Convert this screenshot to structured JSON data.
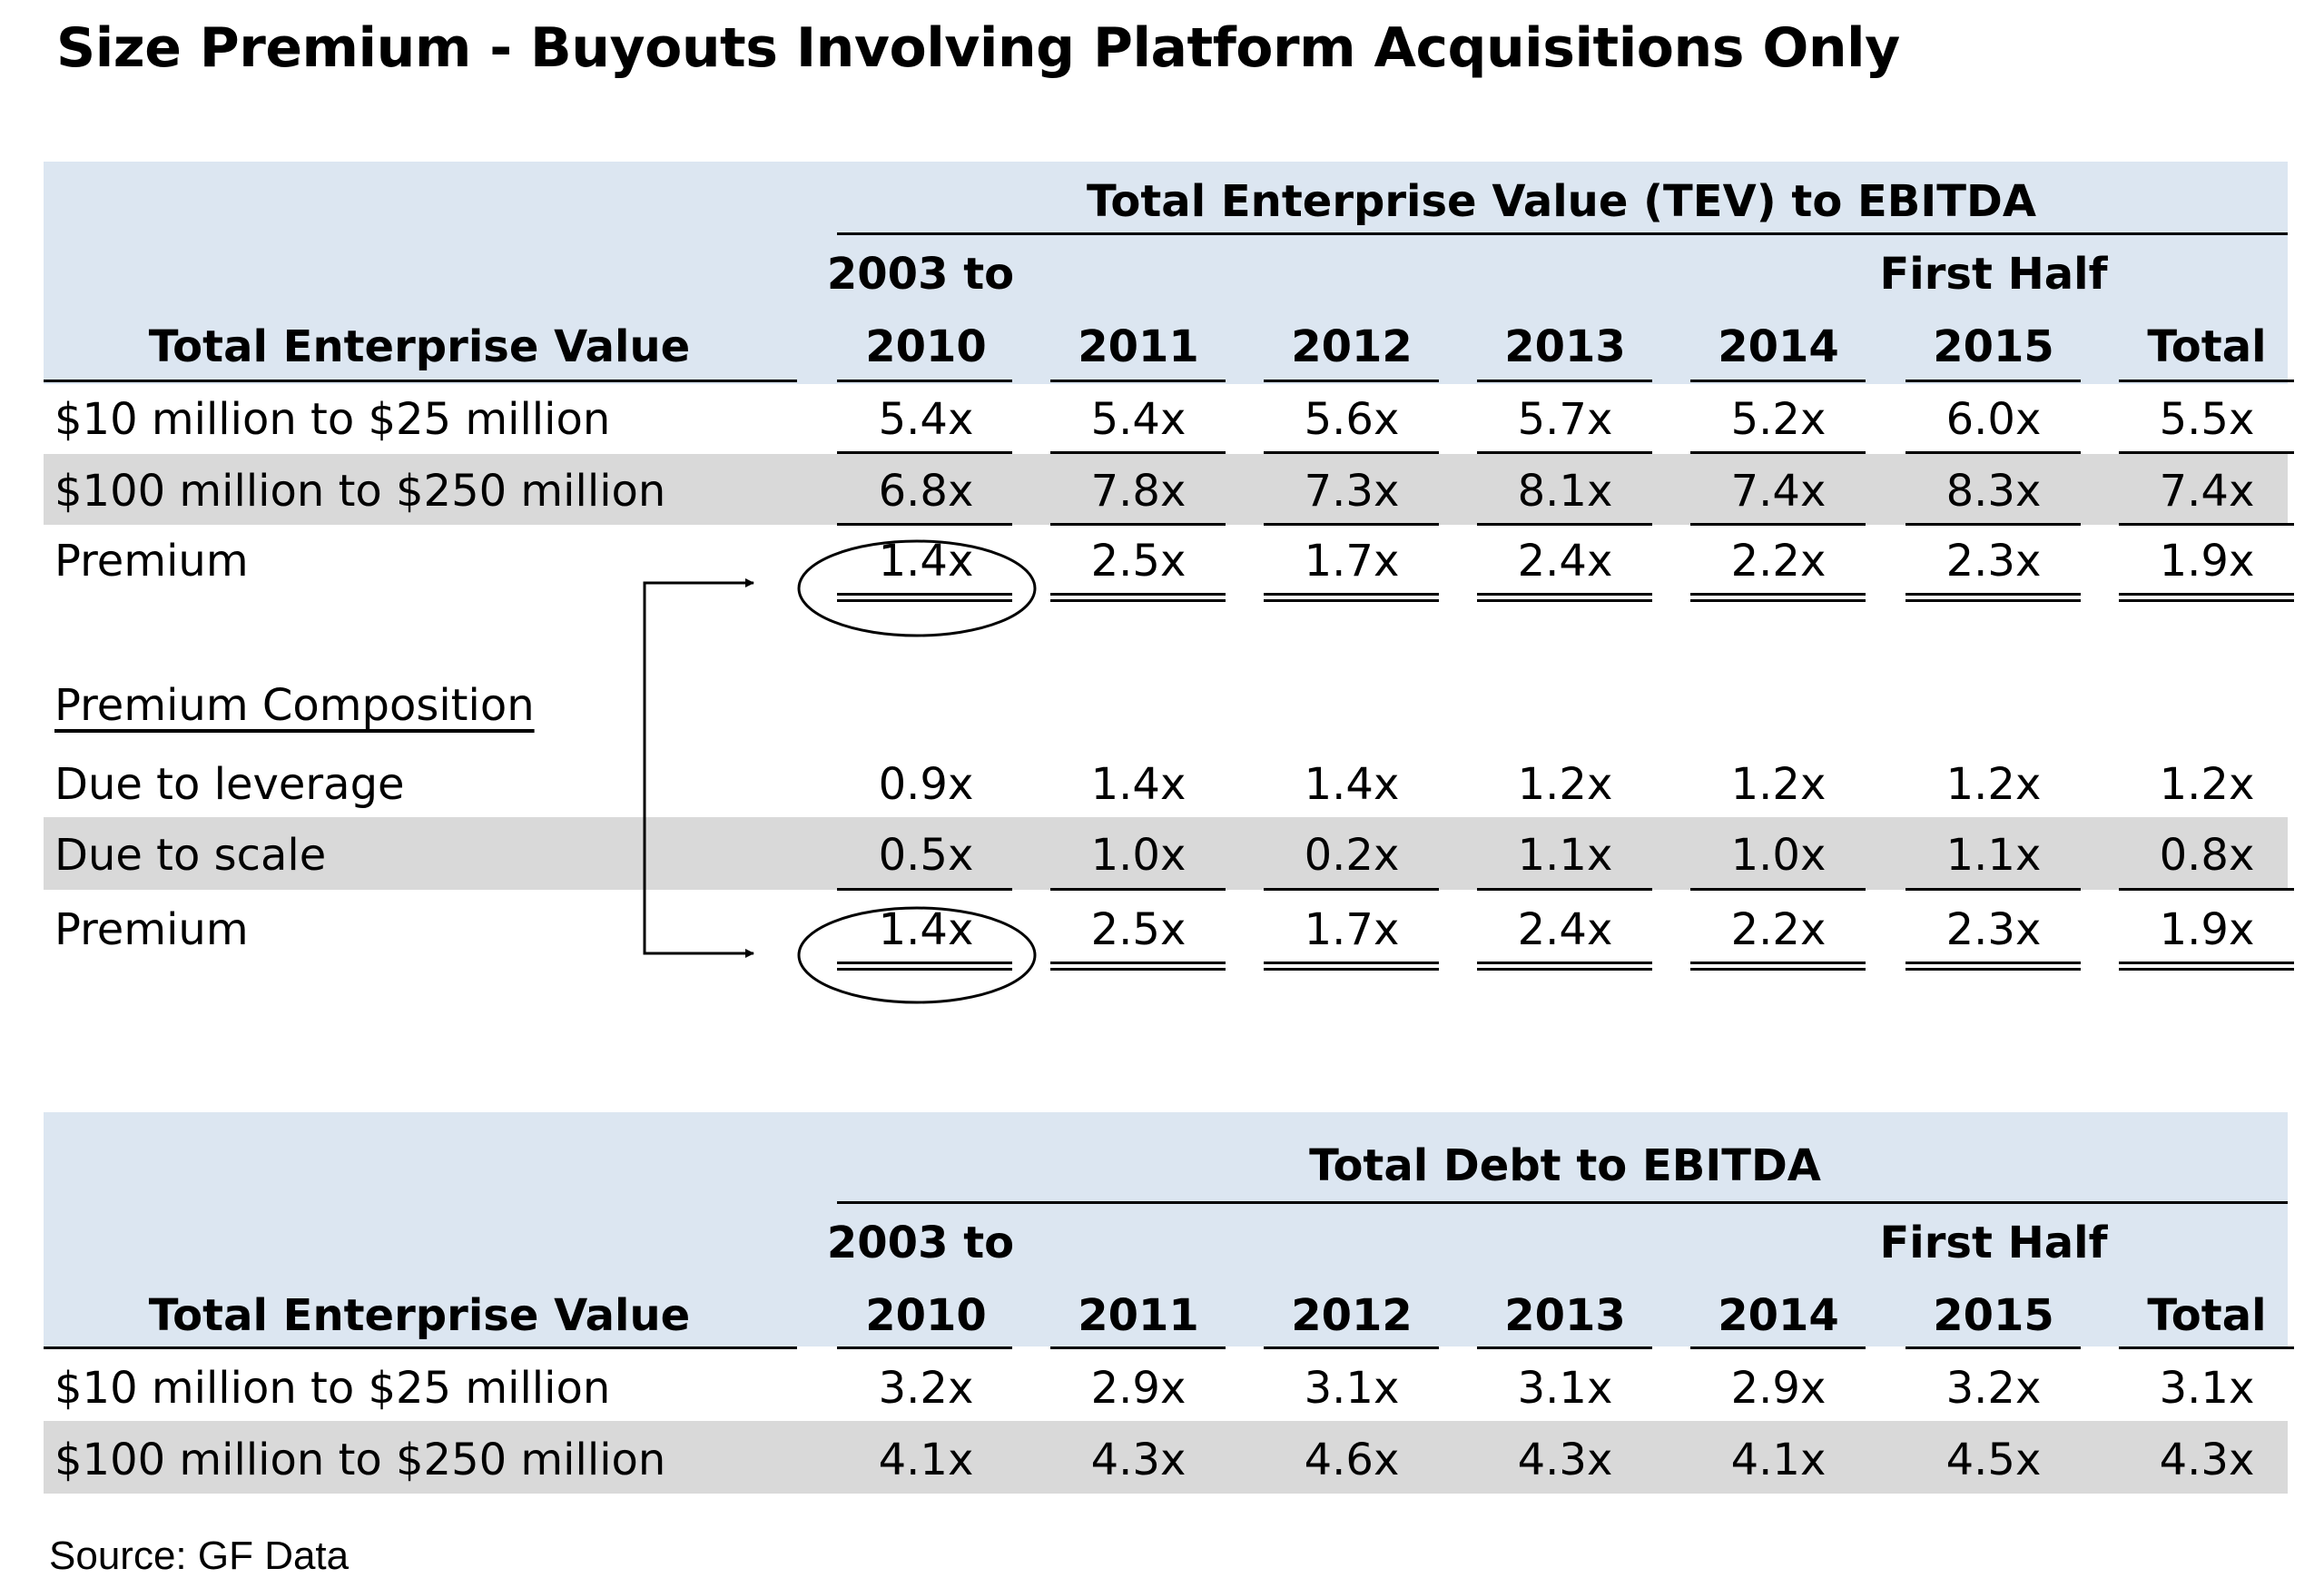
{
  "title": "Size Premium - Buyouts Involving Platform Acquisitions Only",
  "tev_table": {
    "group_header": "Total Enterprise Value (TEV) to EBITDA",
    "row_header": "Total Enterprise Value",
    "columns": [
      {
        "line1": "2003 to",
        "line2": "2010"
      },
      {
        "line1": "",
        "line2": "2011"
      },
      {
        "line1": "",
        "line2": "2012"
      },
      {
        "line1": "",
        "line2": "2013"
      },
      {
        "line1": "",
        "line2": "2014"
      },
      {
        "line1": "First Half",
        "line2": "2015"
      },
      {
        "line1": "",
        "line2": "Total"
      }
    ],
    "rows": [
      {
        "label": "$10 million to $25 million",
        "values": [
          "5.4x",
          "5.4x",
          "5.6x",
          "5.7x",
          "5.2x",
          "6.0x",
          "5.5x"
        ]
      },
      {
        "label": "$100 million to $250 million",
        "values": [
          "6.8x",
          "7.8x",
          "7.3x",
          "8.1x",
          "7.4x",
          "8.3x",
          "7.4x"
        ]
      },
      {
        "label": "Premium",
        "values": [
          "1.4x",
          "2.5x",
          "1.7x",
          "2.4x",
          "2.2x",
          "2.3x",
          "1.9x"
        ]
      }
    ]
  },
  "composition": {
    "heading": "Premium Composition",
    "rows": [
      {
        "label": "Due to leverage",
        "values": [
          "0.9x",
          "1.4x",
          "1.4x",
          "1.2x",
          "1.2x",
          "1.2x",
          "1.2x"
        ]
      },
      {
        "label": "Due to scale",
        "values": [
          "0.5x",
          "1.0x",
          "0.2x",
          "1.1x",
          "1.0x",
          "1.1x",
          "0.8x"
        ]
      },
      {
        "label": "Premium",
        "values": [
          "1.4x",
          "2.5x",
          "1.7x",
          "2.4x",
          "2.2x",
          "2.3x",
          "1.9x"
        ]
      }
    ]
  },
  "debt_table": {
    "group_header": "Total Debt to EBITDA",
    "row_header": "Total Enterprise Value",
    "columns": [
      {
        "line1": "2003 to",
        "line2": "2010"
      },
      {
        "line1": "",
        "line2": "2011"
      },
      {
        "line1": "",
        "line2": "2012"
      },
      {
        "line1": "",
        "line2": "2013"
      },
      {
        "line1": "",
        "line2": "2014"
      },
      {
        "line1": "First Half",
        "line2": "2015"
      },
      {
        "line1": "",
        "line2": "Total"
      }
    ],
    "rows": [
      {
        "label": "$10 million to $25 million",
        "values": [
          "3.2x",
          "2.9x",
          "3.1x",
          "3.1x",
          "2.9x",
          "3.2x",
          "3.1x"
        ]
      },
      {
        "label": "$100 million to $250 million",
        "values": [
          "4.1x",
          "4.3x",
          "4.6x",
          "4.3x",
          "4.1x",
          "4.5x",
          "4.3x"
        ]
      }
    ]
  },
  "source": "Source: GF Data"
}
